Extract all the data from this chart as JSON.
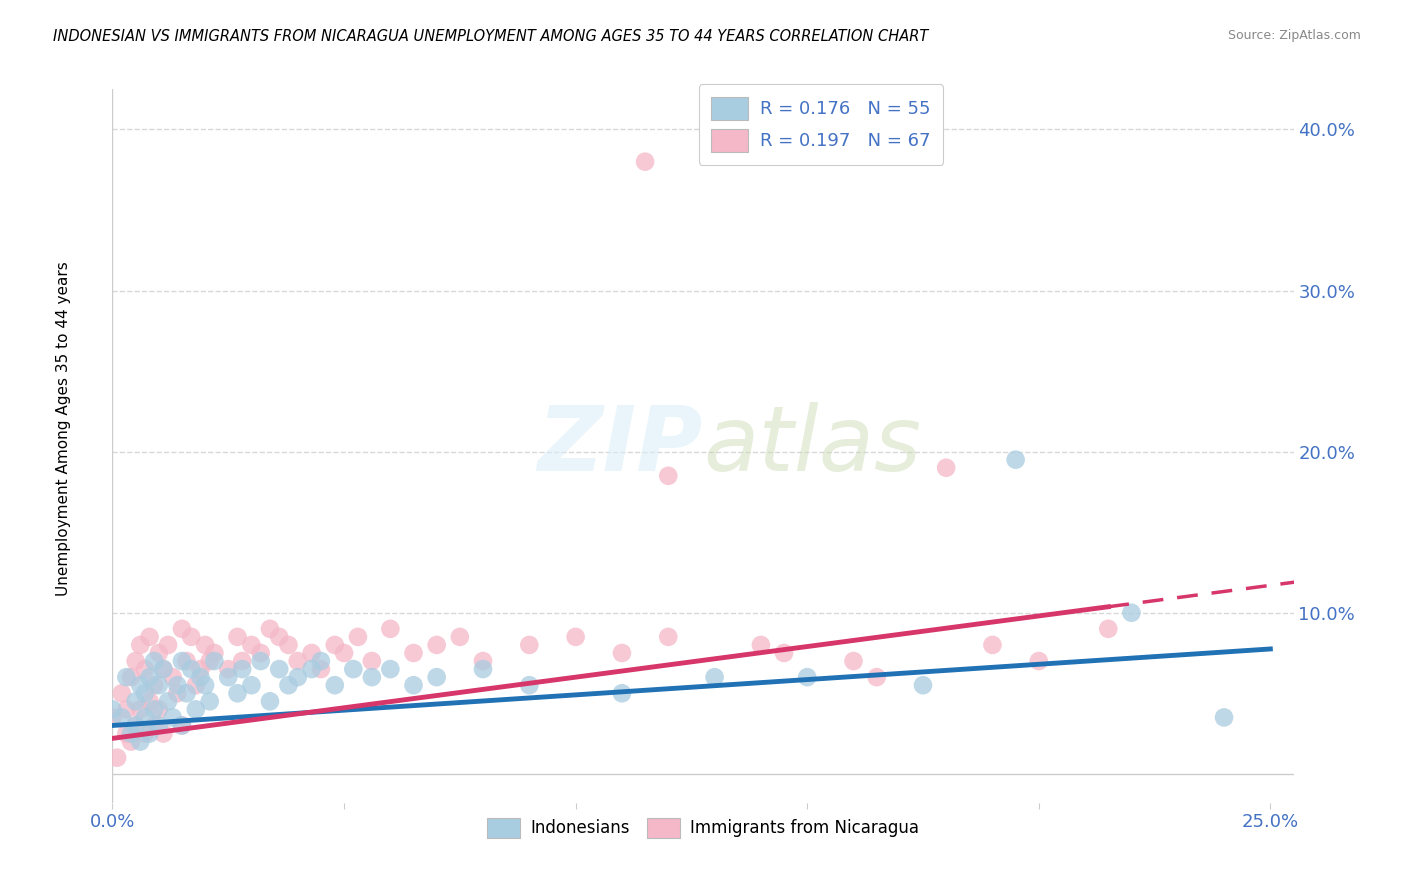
{
  "title": "INDONESIAN VS IMMIGRANTS FROM NICARAGUA UNEMPLOYMENT AMONG AGES 35 TO 44 YEARS CORRELATION CHART",
  "source": "Source: ZipAtlas.com",
  "ylabel": "Unemployment Among Ages 35 to 44 years",
  "xlim": [
    0.0,
    0.255
  ],
  "ylim": [
    -0.018,
    0.425
  ],
  "blue_color": "#a8cce0",
  "pink_color": "#f4b8c8",
  "blue_edge_color": "#7bafd4",
  "pink_edge_color": "#e89ab0",
  "blue_line_color": "#2171b5",
  "pink_line_color": "#d6366a",
  "axis_color": "#4472c4",
  "grid_color": "#d8d8d8",
  "watermark": "ZIPatlas",
  "background_color": "#ffffff",
  "blue_scatter_x": [
    0.0,
    0.002,
    0.003,
    0.004,
    0.005,
    0.005,
    0.006,
    0.006,
    0.007,
    0.007,
    0.008,
    0.008,
    0.009,
    0.009,
    0.01,
    0.01,
    0.011,
    0.012,
    0.013,
    0.014,
    0.015,
    0.015,
    0.016,
    0.017,
    0.018,
    0.019,
    0.02,
    0.021,
    0.022,
    0.025,
    0.027,
    0.028,
    0.03,
    0.032,
    0.034,
    0.036,
    0.038,
    0.04,
    0.043,
    0.045,
    0.048,
    0.052,
    0.056,
    0.06,
    0.065,
    0.07,
    0.08,
    0.09,
    0.11,
    0.13,
    0.15,
    0.175,
    0.195,
    0.22,
    0.24
  ],
  "blue_scatter_y": [
    0.04,
    0.035,
    0.06,
    0.025,
    0.045,
    0.03,
    0.055,
    0.02,
    0.05,
    0.035,
    0.06,
    0.025,
    0.07,
    0.04,
    0.055,
    0.03,
    0.065,
    0.045,
    0.035,
    0.055,
    0.07,
    0.03,
    0.05,
    0.065,
    0.04,
    0.06,
    0.055,
    0.045,
    0.07,
    0.06,
    0.05,
    0.065,
    0.055,
    0.07,
    0.045,
    0.065,
    0.055,
    0.06,
    0.065,
    0.07,
    0.055,
    0.065,
    0.06,
    0.065,
    0.055,
    0.06,
    0.065,
    0.055,
    0.05,
    0.06,
    0.06,
    0.055,
    0.195,
    0.1,
    0.035
  ],
  "pink_scatter_x": [
    0.0,
    0.001,
    0.002,
    0.003,
    0.003,
    0.004,
    0.004,
    0.005,
    0.005,
    0.006,
    0.006,
    0.007,
    0.007,
    0.008,
    0.008,
    0.009,
    0.009,
    0.01,
    0.01,
    0.011,
    0.011,
    0.012,
    0.013,
    0.014,
    0.015,
    0.015,
    0.016,
    0.017,
    0.018,
    0.019,
    0.02,
    0.021,
    0.022,
    0.025,
    0.027,
    0.028,
    0.03,
    0.032,
    0.034,
    0.036,
    0.038,
    0.04,
    0.043,
    0.045,
    0.048,
    0.05,
    0.053,
    0.056,
    0.06,
    0.065,
    0.07,
    0.075,
    0.08,
    0.09,
    0.1,
    0.11,
    0.12,
    0.14,
    0.16,
    0.18,
    0.2,
    0.115,
    0.145,
    0.165,
    0.19,
    0.215,
    0.12
  ],
  "pink_scatter_y": [
    0.035,
    0.01,
    0.05,
    0.04,
    0.025,
    0.06,
    0.02,
    0.07,
    0.03,
    0.08,
    0.04,
    0.065,
    0.025,
    0.085,
    0.045,
    0.055,
    0.03,
    0.075,
    0.04,
    0.065,
    0.025,
    0.08,
    0.06,
    0.05,
    0.09,
    0.03,
    0.07,
    0.085,
    0.055,
    0.065,
    0.08,
    0.07,
    0.075,
    0.065,
    0.085,
    0.07,
    0.08,
    0.075,
    0.09,
    0.085,
    0.08,
    0.07,
    0.075,
    0.065,
    0.08,
    0.075,
    0.085,
    0.07,
    0.09,
    0.075,
    0.08,
    0.085,
    0.07,
    0.08,
    0.085,
    0.075,
    0.085,
    0.08,
    0.07,
    0.19,
    0.07,
    0.38,
    0.075,
    0.06,
    0.08,
    0.09,
    0.185
  ]
}
